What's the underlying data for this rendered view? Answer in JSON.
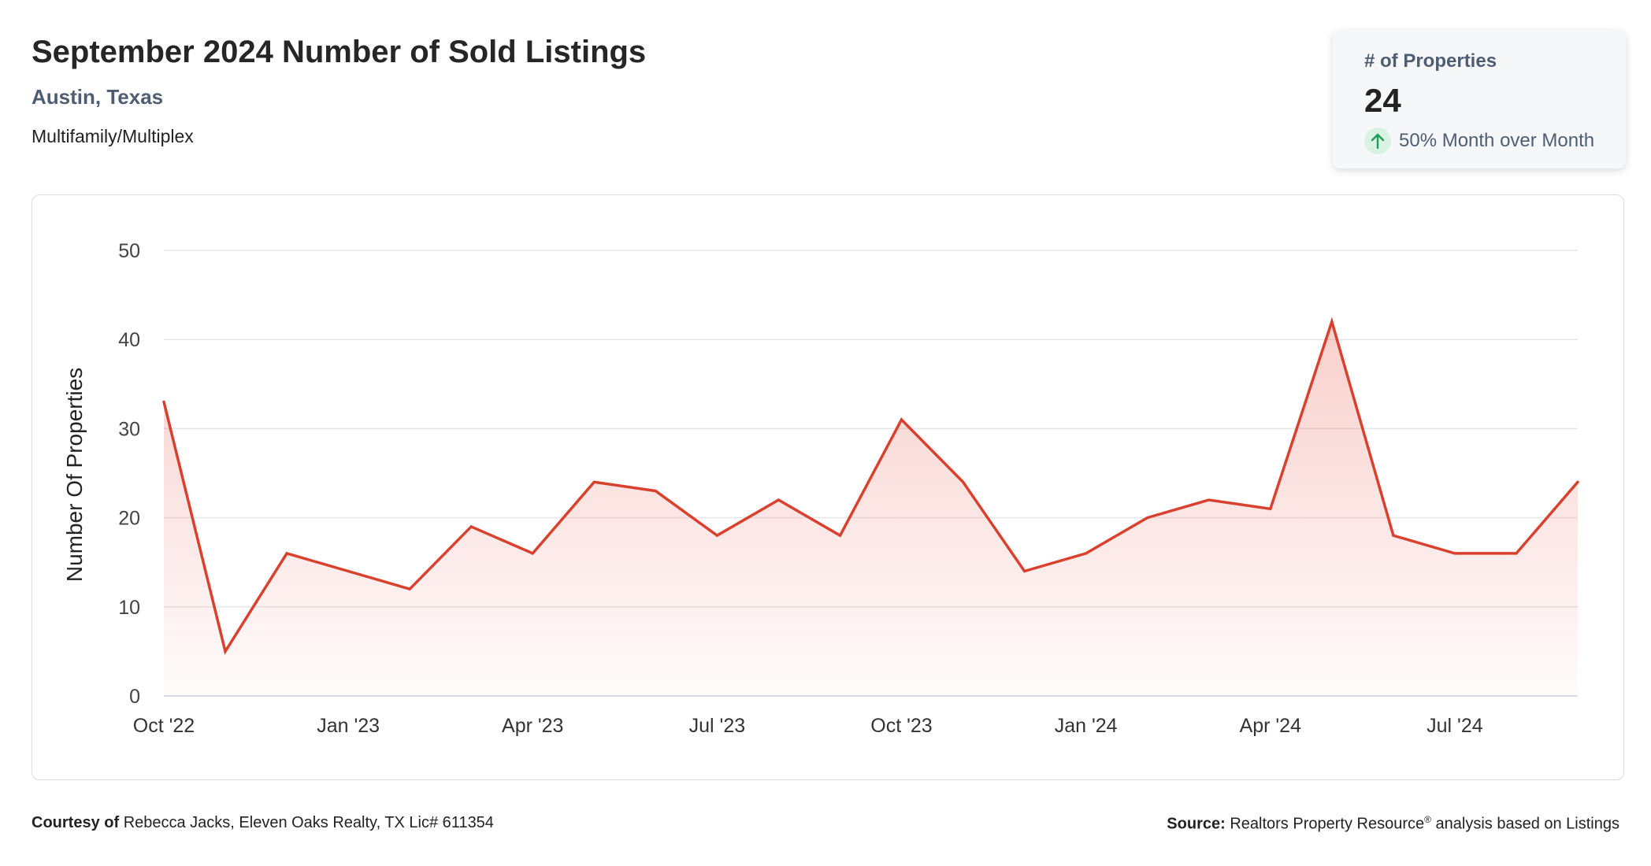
{
  "header": {
    "title": "September 2024 Number of Sold Listings",
    "location": "Austin, Texas",
    "property_type": "Multifamily/Multiplex"
  },
  "kpi": {
    "label": "# of Properties",
    "value": "24",
    "change": "50% Month over Month",
    "direction_icon": "arrow-up-icon",
    "icon_color": "#1e9e5a",
    "icon_bg": "#d8f3e3"
  },
  "footer": {
    "courtesy_label": "Courtesy of",
    "courtesy_text": "Rebecca Jacks, Eleven Oaks Realty, TX Lic# 611354",
    "source_label": "Source:",
    "source_text_1": "Realtors Property Resource",
    "source_sup": "®",
    "source_text_2": "analysis based on Listings"
  },
  "chart_data": {
    "type": "area",
    "ylabel": "Number Of Properties",
    "ylim": [
      0,
      50
    ],
    "yticks": [
      0,
      10,
      20,
      30,
      40,
      50
    ],
    "grid": true,
    "line_color": "#d9412f",
    "x": [
      "2022-10",
      "2022-11",
      "2022-12",
      "2023-01",
      "2023-02",
      "2023-03",
      "2023-04",
      "2023-05",
      "2023-06",
      "2023-07",
      "2023-08",
      "2023-09",
      "2023-10",
      "2023-11",
      "2023-12",
      "2024-01",
      "2024-02",
      "2024-03",
      "2024-04",
      "2024-05",
      "2024-06",
      "2024-07",
      "2024-08",
      "2024-09"
    ],
    "xtick_labels": [
      {
        "month": "2022-10",
        "label": "Oct '22"
      },
      {
        "month": "2023-01",
        "label": "Jan '23"
      },
      {
        "month": "2023-04",
        "label": "Apr '23"
      },
      {
        "month": "2023-07",
        "label": "Jul '23"
      },
      {
        "month": "2023-10",
        "label": "Oct '23"
      },
      {
        "month": "2024-01",
        "label": "Jan '24"
      },
      {
        "month": "2024-04",
        "label": "Apr '24"
      },
      {
        "month": "2024-07",
        "label": "Jul '24"
      }
    ],
    "series": [
      {
        "values": [
          33,
          5,
          16,
          14,
          12,
          19,
          16,
          24,
          23,
          18,
          22,
          18,
          31,
          24,
          14,
          16,
          20,
          22,
          21,
          42,
          18,
          16,
          16,
          24
        ]
      }
    ]
  }
}
